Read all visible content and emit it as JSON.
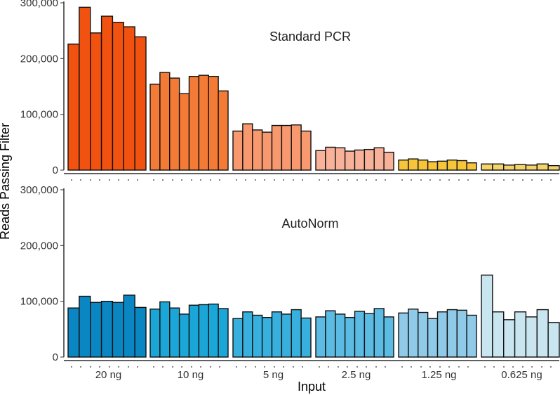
{
  "chart_data": {
    "type": "bar",
    "xlabel": "Input",
    "ylabel": "Reads Passing Filter",
    "ylim": [
      0,
      300000
    ],
    "yticks": [
      0,
      100000,
      200000,
      300000
    ],
    "ytick_labels": [
      "0",
      "100,000",
      "200,000",
      "300,000"
    ],
    "groups": [
      "20 ng",
      "10 ng",
      "5 ng",
      "2.5 ng",
      "1.25 ng",
      "0.625 ng"
    ],
    "panels": [
      {
        "title": "Standard PCR",
        "colors": [
          "#f2520f",
          "#f47b35",
          "#f7986e",
          "#f9b29a",
          "#f6c53a",
          "#f4d36a"
        ],
        "values": [
          [
            226000,
            292000,
            246000,
            276000,
            265000,
            257000,
            239000
          ],
          [
            154000,
            175000,
            165000,
            137000,
            168000,
            170000,
            168000,
            142000
          ],
          [
            70000,
            83000,
            72000,
            68000,
            80000,
            80000,
            81000,
            70000
          ],
          [
            35000,
            41000,
            40000,
            34000,
            36000,
            37000,
            40000,
            32000
          ],
          [
            18000,
            20000,
            18000,
            15000,
            16000,
            18000,
            17000,
            13000
          ],
          [
            11000,
            11000,
            9000,
            10000,
            9000,
            11000,
            8000
          ]
        ]
      },
      {
        "title": "AutoNorm",
        "colors": [
          "#0a86c2",
          "#1ba6d8",
          "#38b0de",
          "#5bbbe3",
          "#8fcbe8",
          "#c9e5f0"
        ],
        "values": [
          [
            88000,
            109000,
            98000,
            100000,
            98000,
            111000,
            89000
          ],
          [
            86000,
            99000,
            88000,
            77000,
            93000,
            94000,
            95000,
            87000
          ],
          [
            69000,
            81000,
            75000,
            71000,
            81000,
            77000,
            85000,
            70000
          ],
          [
            72000,
            83000,
            77000,
            71000,
            82000,
            78000,
            87000,
            72000
          ],
          [
            79000,
            86000,
            80000,
            69000,
            81000,
            85000,
            84000,
            75000
          ],
          [
            147000,
            81000,
            67000,
            81000,
            72000,
            85000,
            62000
          ]
        ]
      }
    ]
  }
}
